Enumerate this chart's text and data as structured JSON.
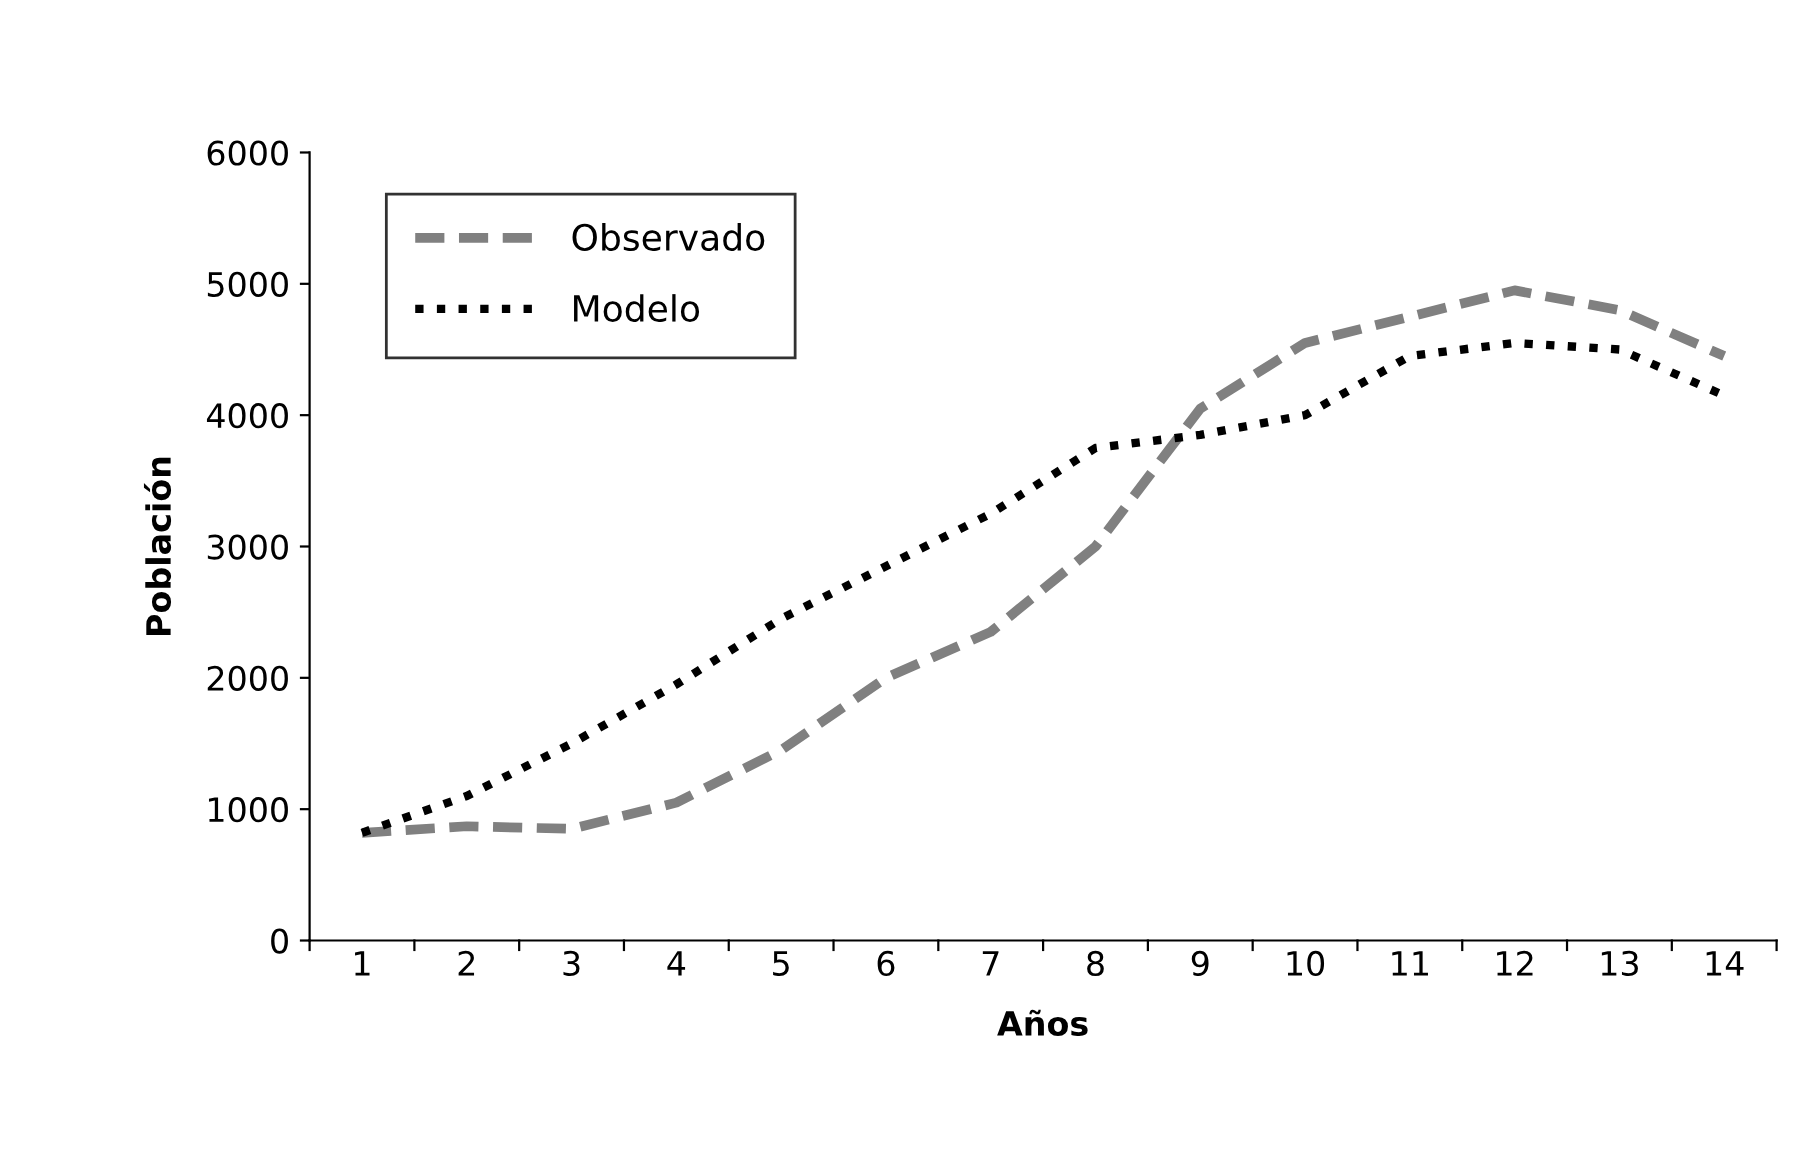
{
  "chart_data": {
    "type": "line",
    "xlabel": "Años",
    "ylabel": "Población",
    "categories": [
      "1",
      "2",
      "3",
      "4",
      "5",
      "6",
      "7",
      "8",
      "9",
      "10",
      "11",
      "12",
      "13",
      "14"
    ],
    "series": [
      {
        "name": "Observado",
        "color": "#808080",
        "line_style": "dashed",
        "values": [
          820,
          870,
          850,
          1050,
          1450,
          2000,
          2350,
          3000,
          4050,
          4550,
          4750,
          4950,
          4800,
          4450
        ]
      },
      {
        "name": "Modelo",
        "color": "#000000",
        "line_style": "dotted",
        "values": [
          820,
          1100,
          1500,
          1950,
          2450,
          2850,
          3250,
          3750,
          3850,
          4000,
          4450,
          4550,
          4500,
          4150
        ]
      }
    ],
    "ylim": [
      0,
      6000
    ],
    "yticks": [
      0,
      1000,
      2000,
      3000,
      4000,
      5000,
      6000
    ],
    "grid": false,
    "legend": "top left"
  }
}
